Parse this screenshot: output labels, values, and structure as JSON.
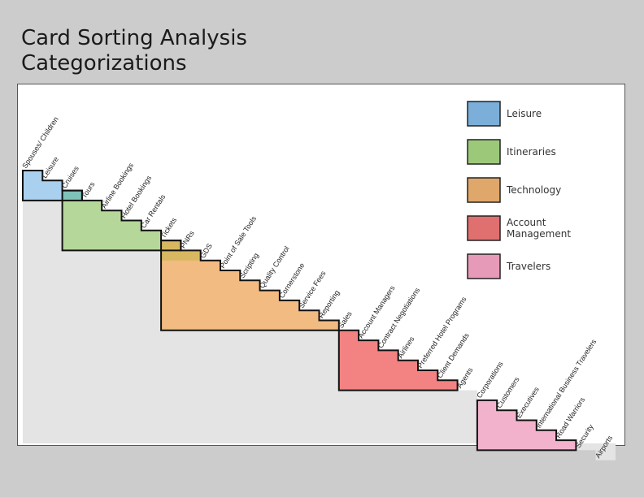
{
  "title": {
    "line1": "Card Sorting Analysis",
    "line2": "Categorizations"
  },
  "legend": [
    {
      "key": "leisure",
      "label": "Leisure",
      "color": "#7bafd9"
    },
    {
      "key": "itineraries",
      "label": "Itineraries",
      "color": "#9cc87a"
    },
    {
      "key": "technology",
      "label": "Technology",
      "color": "#dfa76a"
    },
    {
      "key": "account",
      "label": "Account\nManagement",
      "color": "#e06f6f"
    },
    {
      "key": "travelers",
      "label": "Travelers",
      "color": "#e79ab7"
    }
  ],
  "cards": [
    "Spouses/ Children",
    "Leisure",
    "Cruises",
    "Tours",
    "Airline Bookings",
    "Hotel Bookings",
    "Car Rentals",
    "Tickets",
    "PNRs",
    "GDS",
    "Point of Sale Tools",
    "Scripting",
    "Quality Control",
    "Cornerstone",
    "Service Fees",
    "Reporting",
    "Sales",
    "Account Managers",
    "Contract Negotiations",
    "Airlines",
    "Preferred Hotel Programs",
    "Client Demands",
    "Agents",
    "Corporations",
    "Customers",
    "Executives",
    "International Business Travelers",
    "Road Warriors",
    "Security",
    "Airports"
  ],
  "groups": [
    {
      "category": "leisure",
      "first_card": 0,
      "last_card": 2
    },
    {
      "category": "itineraries",
      "first_card": 2,
      "last_card": 7
    },
    {
      "category": "technology",
      "first_card": 7,
      "last_card": 15
    },
    {
      "category": "account",
      "first_card": 16,
      "last_card": 21
    },
    {
      "category": "travelers",
      "first_card": 23,
      "last_card": 27
    }
  ],
  "colors": {
    "background": "#cccccc",
    "staircase_fill": "#e4e4e4",
    "leisure_fill": "#a9d0ee",
    "itineraries_fill": "#b5d89a",
    "technology_fill": "#f2bb82",
    "account_fill": "#f38282",
    "travelers_fill": "#f3b2cc",
    "leisure_itineraries_overlap": "#7fc2b8",
    "itineraries_technology_overlap": "#d8b761"
  }
}
